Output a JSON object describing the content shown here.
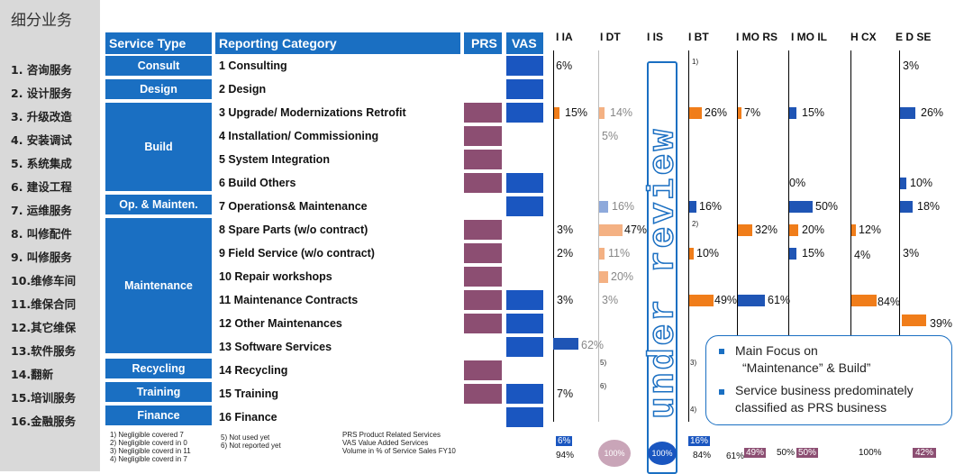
{
  "left_column": {
    "title": "细分业务",
    "items": [
      "1. 咨询服务",
      "2. 设计服务",
      "3. 升级改造",
      "4. 安装调试",
      "5. 系统集成",
      "6. 建设工程",
      "7. 运维服务",
      "8. 叫修配件",
      "9. 叫修服务",
      "10.维修车间",
      "11.维保合同",
      "12.其它维保",
      "13.软件服务",
      "14.翻新",
      "15.培训服务",
      "16.金融服务"
    ]
  },
  "header": {
    "service_type": "Service Type",
    "reporting_category": "Reporting Category",
    "prs": "PRS",
    "vas": "VAS",
    "markets": [
      "I IA",
      "I DT",
      "I IS",
      "I BT",
      "I MO RS",
      "I MO IL",
      "H CX",
      "E D SE"
    ]
  },
  "service_types": [
    "Consult",
    "Design",
    "Build",
    "Op. & Mainten.",
    "Maintenance",
    "Recycling",
    "Training",
    "Finance"
  ],
  "categories": [
    "1 Consulting",
    "2 Design",
    "3 Upgrade/ Modernizations Retrofit",
    "4 Installation/ Commissioning",
    "5 System Integration",
    "6 Build Others",
    "7 Operations& Maintenance",
    "8 Spare Parts (w/o contract)",
    "9 Field Service (w/o contract)",
    "10 Repair  workshops",
    "11 Maintenance  Contracts",
    "12 Other Maintenances",
    "13 Software Services",
    "14 Recycling",
    "15 Training",
    "16 Finance"
  ],
  "values": {
    "ia": [
      "6%",
      "15%",
      "3%",
      "2%",
      "3%",
      "7%"
    ],
    "dt": [
      "14%",
      "5%",
      "16%",
      "47%",
      "11%",
      "20%",
      "3%",
      "62%"
    ],
    "bt": [
      "26%",
      "16%",
      "10%",
      "49%"
    ],
    "mors": [
      "7%",
      "32%",
      "61%"
    ],
    "moil": [
      "15%",
      "0%",
      "50%",
      "20%",
      "15%"
    ],
    "hcx": [
      "12%",
      "4%",
      "84%"
    ],
    "edse": [
      "3%",
      "26%",
      "10%",
      "18%",
      "3%",
      "39%"
    ]
  },
  "notes_markers": [
    "1)",
    "2)",
    "3)",
    "4)",
    "5)",
    "6)"
  ],
  "watermark": "under review",
  "focus_box": {
    "bullet1": "Main Focus on",
    "bullet1b": "“Maintenance” & Build”",
    "bullet2": "Service business predominately",
    "bullet2b": "classified as PRS business"
  },
  "footnotes": {
    "col1": [
      "1)    Negligible covered 7",
      "2)    Negligible coverd in 0",
      "3)    Negligible coverd in 11",
      "4)    Negligible coverd in 7"
    ],
    "col2": [
      "5)    Not used yet",
      "6)    Not reported yet"
    ],
    "col3": [
      "PRS Product Related Services",
      "VAS Value Added Services",
      "Volume in % of Service Sales FY10"
    ]
  },
  "footer_values": {
    "ia_top": "6%",
    "ia_bot": "94%",
    "dt": "100%",
    "is": "100%",
    "bt_top": "16%",
    "bt_bot": "84%",
    "mors_a": "61%",
    "mors_b": "49%",
    "moil_a": "50%",
    "moil_b": "50%",
    "hcx": "100%",
    "edse": "42%"
  },
  "colors": {
    "blue": "#1a6fc2",
    "prs": "#8c4e72",
    "vas": "#1a56c0",
    "orange": "#f07d1a"
  }
}
